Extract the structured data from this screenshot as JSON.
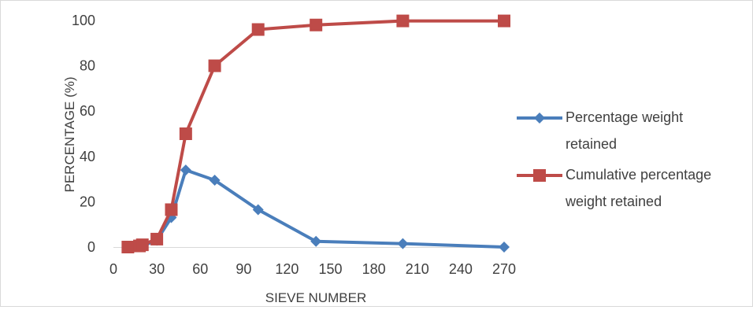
{
  "chart_data": {
    "type": "line",
    "title": "",
    "xlabel": "SIEVE NUMBER",
    "ylabel": "PERCENTAGE (%)",
    "xlim": [
      0,
      270
    ],
    "ylim": [
      0,
      100
    ],
    "x_ticks": [
      0,
      30,
      60,
      90,
      120,
      150,
      180,
      210,
      240,
      270
    ],
    "y_ticks": [
      0,
      20,
      40,
      60,
      80,
      100
    ],
    "grid": false,
    "legend_position": "right",
    "series": [
      {
        "name": "Percentage weight retained",
        "name_lines": [
          "Percentage weight",
          "retained"
        ],
        "color": "#4a7ebb",
        "marker": "diamond",
        "x": [
          10,
          18,
          20,
          30,
          40,
          50,
          70,
          100,
          140,
          200,
          270
        ],
        "y": [
          0,
          0.5,
          0.5,
          3,
          13,
          34,
          29.5,
          16.5,
          2.5,
          1.5,
          0
        ]
      },
      {
        "name": "Cumulative percentage weight retained",
        "name_lines": [
          "Cumulative percentage",
          "weight retained"
        ],
        "color": "#be4b48",
        "marker": "square",
        "x": [
          10,
          18,
          20,
          30,
          40,
          50,
          70,
          100,
          140,
          200,
          270
        ],
        "y": [
          0,
          0.5,
          1,
          3.5,
          16.5,
          50,
          80,
          96,
          98,
          99.8,
          99.8
        ]
      }
    ]
  }
}
